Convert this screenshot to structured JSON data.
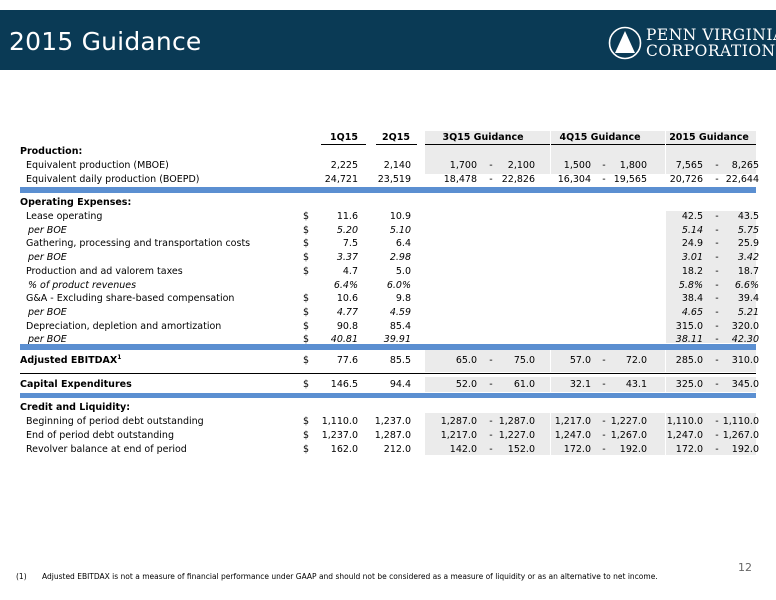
{
  "header": {
    "title": "2015 Guidance",
    "logo_line1": "PENN VIRGINIA",
    "logo_line2": "CORPORATION",
    "bg_color": "#0a3a55"
  },
  "table": {
    "columns": [
      "1Q15",
      "2Q15",
      "3Q15 Guidance",
      "4Q15 Guidance",
      "2015 Guidance"
    ],
    "production_title": "Production:",
    "production": [
      {
        "label": "Equivalent production (MBOE)",
        "q1": "2,225",
        "q2": "2,140",
        "q3_lo": "1,700",
        "q3_hi": "2,100",
        "q4_lo": "1,500",
        "q4_hi": "1,800",
        "fy_lo": "7,565",
        "fy_hi": "8,265"
      },
      {
        "label": "Equivalent daily production (BOEPD)",
        "q1": "24,721",
        "q2": "23,519",
        "q3_lo": "18,478",
        "q3_hi": "22,826",
        "q4_lo": "16,304",
        "q4_hi": "19,565",
        "fy_lo": "20,726",
        "fy_hi": "22,644"
      }
    ],
    "opex_title": "Operating Expenses:",
    "opex": [
      {
        "label": "Lease operating",
        "dollar": "$",
        "q1": "11.6",
        "q2": "10.9",
        "fy_lo": "42.5",
        "fy_hi": "43.5",
        "italic": false
      },
      {
        "label": "per BOE",
        "dollar": "$",
        "q1": "5.20",
        "q2": "5.10",
        "fy_lo": "5.14",
        "fy_hi": "5.75",
        "italic": true
      },
      {
        "label": "Gathering, processing and transportation costs",
        "dollar": "$",
        "q1": "7.5",
        "q2": "6.4",
        "fy_lo": "24.9",
        "fy_hi": "25.9",
        "italic": false
      },
      {
        "label": "per BOE",
        "dollar": "$",
        "q1": "3.37",
        "q2": "2.98",
        "fy_lo": "3.01",
        "fy_hi": "3.42",
        "italic": true
      },
      {
        "label": "Production and ad valorem taxes",
        "dollar": "$",
        "q1": "4.7",
        "q2": "5.0",
        "fy_lo": "18.2",
        "fy_hi": "18.7",
        "italic": false
      },
      {
        "label": "% of product revenues",
        "dollar": "",
        "q1": "6.4%",
        "q2": "6.0%",
        "fy_lo": "5.8%",
        "fy_hi": "6.6%",
        "italic": true
      },
      {
        "label": "G&A - Excluding share-based compensation",
        "dollar": "$",
        "q1": "10.6",
        "q2": "9.8",
        "fy_lo": "38.4",
        "fy_hi": "39.4",
        "italic": false
      },
      {
        "label": "per BOE",
        "dollar": "$",
        "q1": "4.77",
        "q2": "4.59",
        "fy_lo": "4.65",
        "fy_hi": "5.21",
        "italic": true
      },
      {
        "label": "Depreciation, depletion and amortization",
        "dollar": "$",
        "q1": "90.8",
        "q2": "85.4",
        "fy_lo": "315.0",
        "fy_hi": "320.0",
        "italic": false
      },
      {
        "label": "per BOE",
        "dollar": "$",
        "q1": "40.81",
        "q2": "39.91",
        "fy_lo": "38.11",
        "fy_hi": "42.30",
        "italic": true
      }
    ],
    "ebitdax": {
      "label": "Adjusted EBITDAX",
      "sup": "1",
      "dollar": "$",
      "q1": "77.6",
      "q2": "85.5",
      "q3_lo": "65.0",
      "q3_hi": "75.0",
      "q4_lo": "57.0",
      "q4_hi": "72.0",
      "fy_lo": "285.0",
      "fy_hi": "310.0"
    },
    "capex": {
      "label": "Capital Expenditures",
      "dollar": "$",
      "q1": "146.5",
      "q2": "94.4",
      "q3_lo": "52.0",
      "q3_hi": "61.0",
      "q4_lo": "32.1",
      "q4_hi": "43.1",
      "fy_lo": "325.0",
      "fy_hi": "345.0"
    },
    "credit_title": "Credit and Liquidity:",
    "credit": [
      {
        "label": "Beginning of period debt outstanding",
        "dollar": "$",
        "q1": "1,110.0",
        "q2": "1,237.0",
        "q3_lo": "1,287.0",
        "q3_hi": "1,287.0",
        "q4_lo": "1,217.0",
        "q4_hi": "1,227.0",
        "fy_lo": "1,110.0",
        "fy_hi": "1,110.0"
      },
      {
        "label": "End of period debt outstanding",
        "dollar": "$",
        "q1": "1,237.0",
        "q2": "1,287.0",
        "q3_lo": "1,217.0",
        "q3_hi": "1,227.0",
        "q4_lo": "1,247.0",
        "q4_hi": "1,267.0",
        "fy_lo": "1,247.0",
        "fy_hi": "1,267.0"
      },
      {
        "label": "Revolver balance at end of period",
        "dollar": "$",
        "q1": "162.0",
        "q2": "212.0",
        "q3_lo": "142.0",
        "q3_hi": "152.0",
        "q4_lo": "172.0",
        "q4_hi": "192.0",
        "fy_lo": "172.0",
        "fy_hi": "192.0"
      }
    ],
    "range_sep": "-"
  },
  "footer": {
    "page_number": "12",
    "note_number": "(1)",
    "note_text": "Adjusted EBITDAX is not a measure of financial performance under GAAP and should not be considered as a measure of liquidity or as an alternative to net income."
  }
}
